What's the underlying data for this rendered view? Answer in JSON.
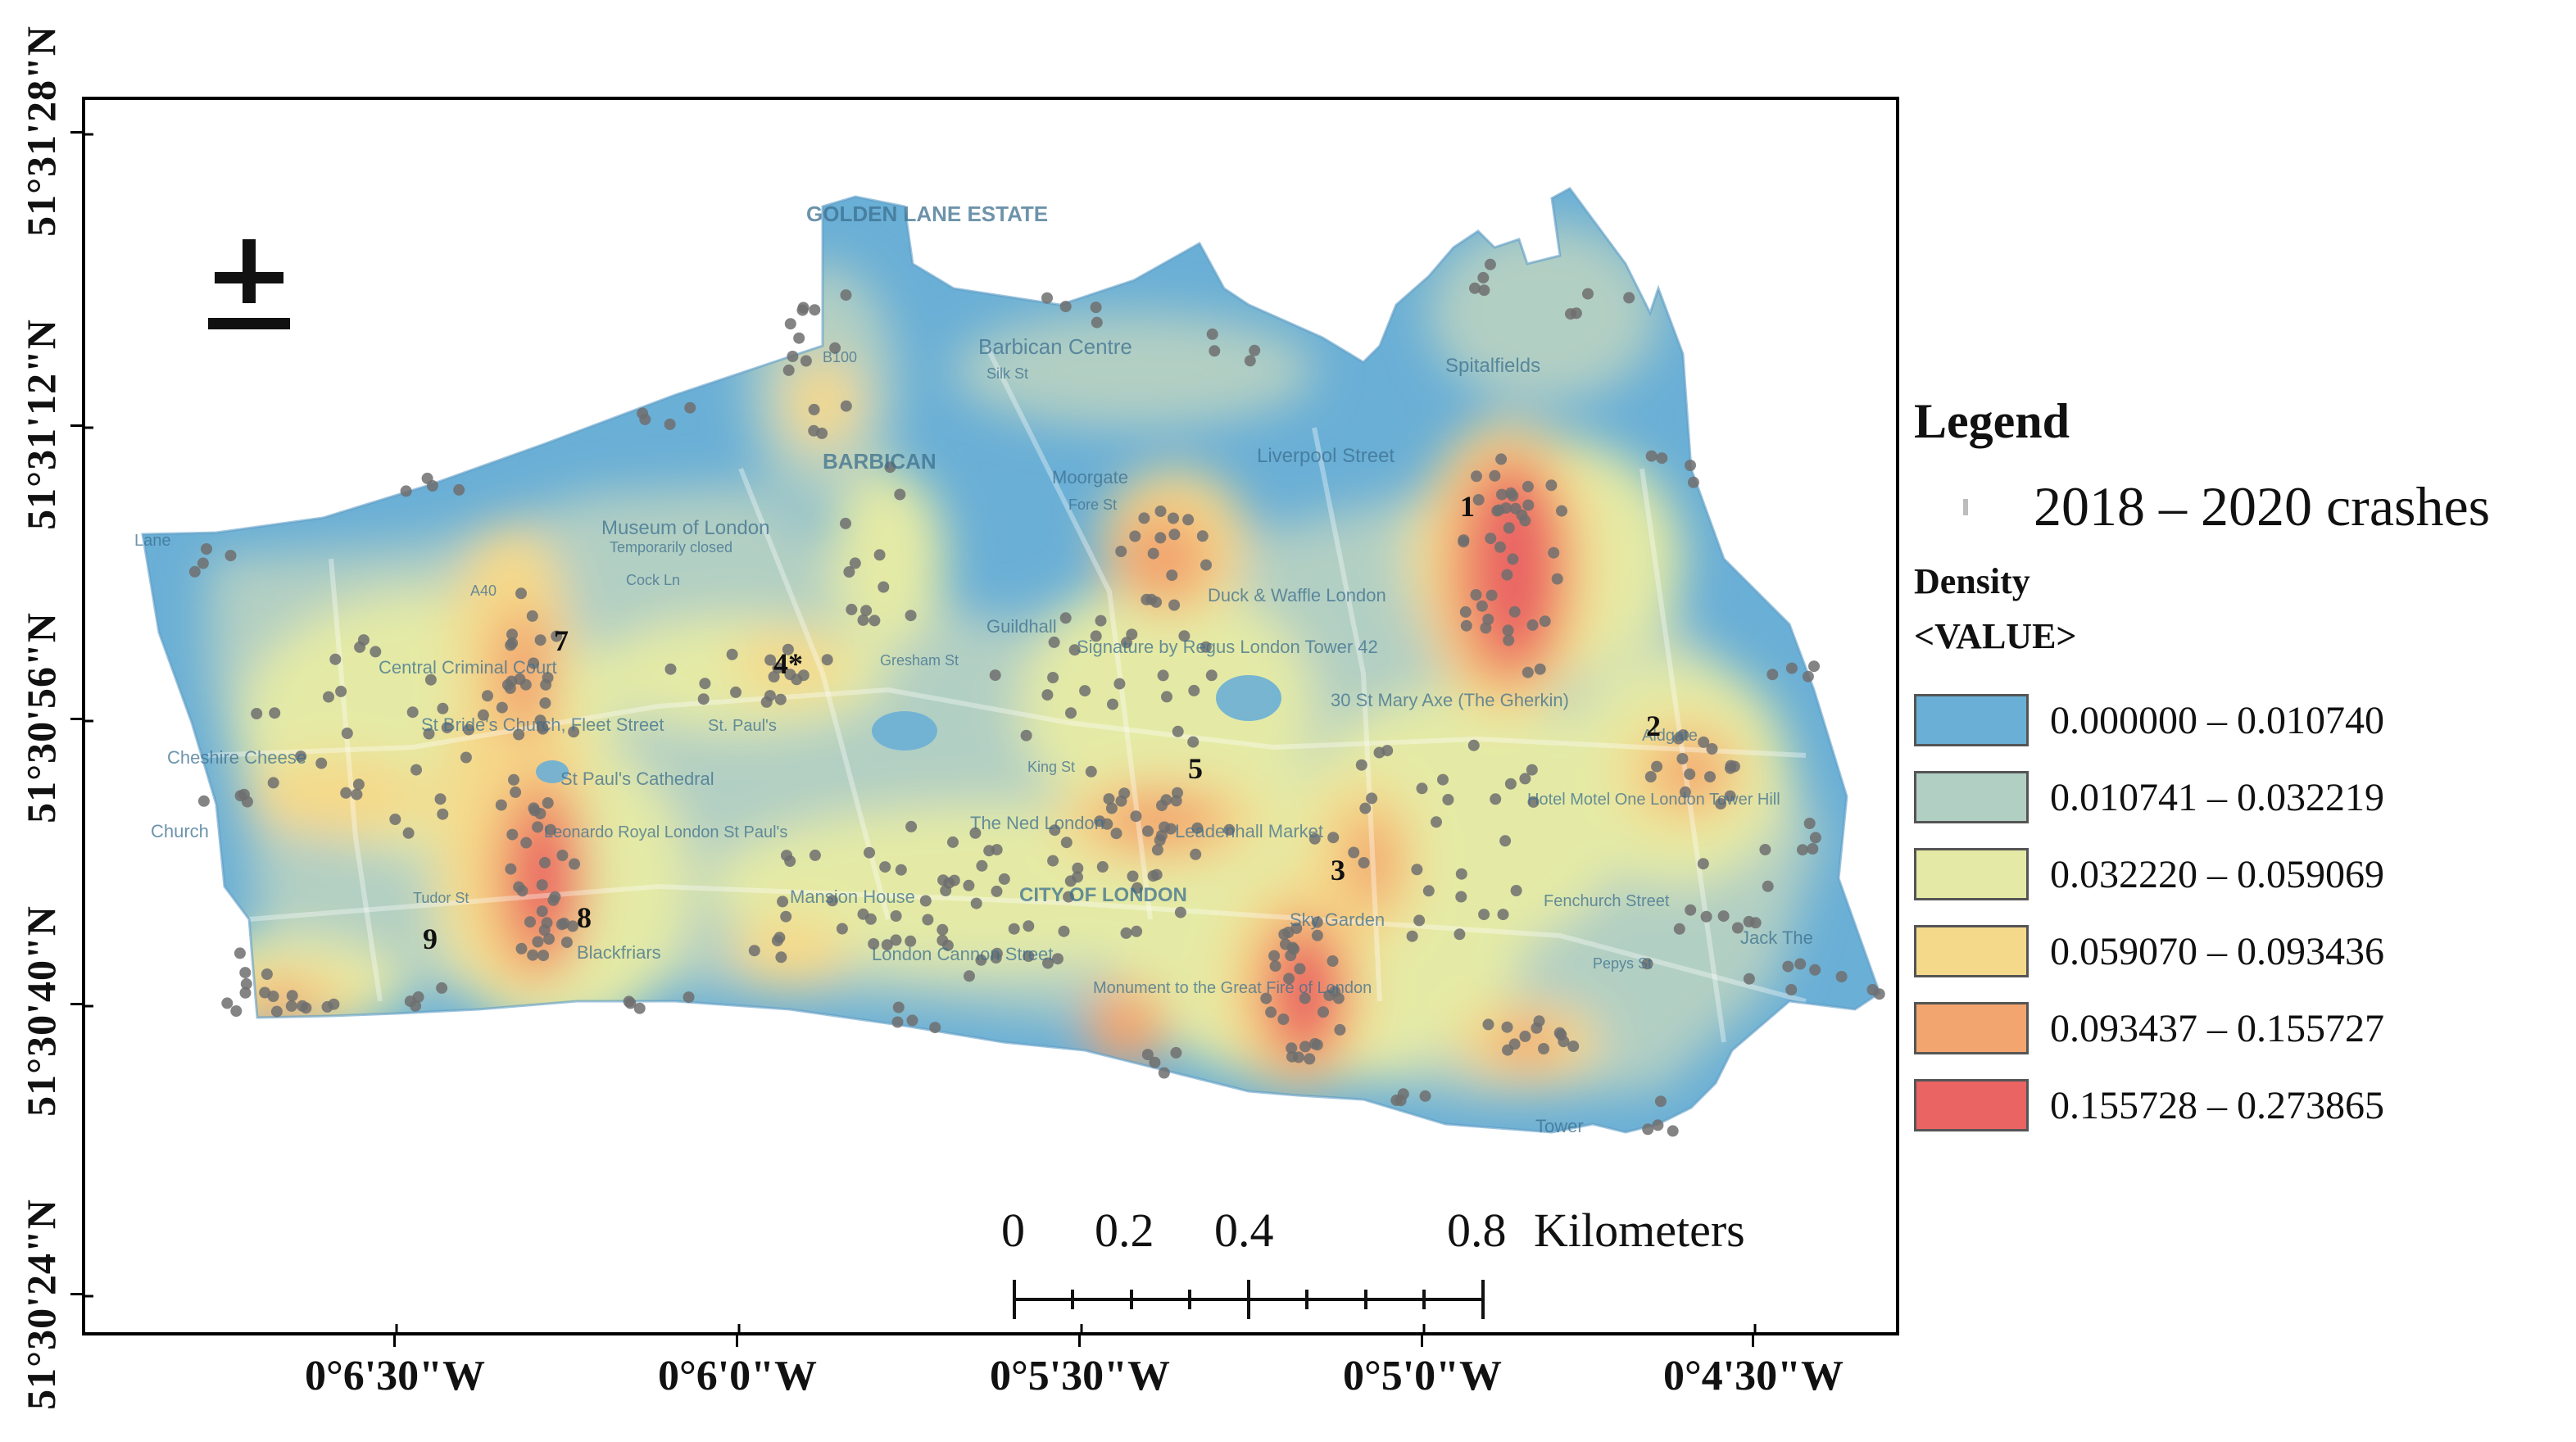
{
  "latitude_labels": [
    "51°31'28\"N",
    "51°31'12\"N",
    "51°30'56\"N",
    "51°30'40\"N",
    "51°30'24\"N"
  ],
  "longitude_labels": [
    "0°6'30\"W",
    "0°6'0\"W",
    "0°5'30\"W",
    "0°5'0\"W",
    "0°4'30\"W"
  ],
  "legend": {
    "title": "Legend",
    "points_label": "2018 – 2020 crashes",
    "density_title": "Density",
    "value_title": "<VALUE>",
    "classes": [
      {
        "range": "0.000000 – 0.010740",
        "color": "#6aafd6"
      },
      {
        "range": "0.010741 – 0.032219",
        "color": "#b2cfc3"
      },
      {
        "range": "0.032220 – 0.059069",
        "color": "#e4eaa6"
      },
      {
        "range": "0.059070 – 0.093436",
        "color": "#f5d98a"
      },
      {
        "range": "0.093437 – 0.155727",
        "color": "#f2a56f"
      },
      {
        "range": "0.155728 – 0.273865",
        "color": "#ea6464"
      }
    ]
  },
  "scale_bar": {
    "labels": [
      "0",
      "0.2",
      "0.4",
      "0.8"
    ],
    "unit": "Kilometers"
  },
  "hotspot_labels": [
    "1",
    "2",
    "3",
    "4*",
    "5",
    "7",
    "8",
    "9"
  ],
  "basemap_labels": [
    "GOLDEN LANE ESTATE",
    "Barbican Centre",
    "BARBICAN",
    "Museum of London",
    "Temporarily closed",
    "Moorgate",
    "Fore St",
    "Liverpool Street",
    "Spitalfields",
    "Duck & Waffle London",
    "Signature by Regus London Tower 42",
    "30 St Mary Axe (The Gherkin)",
    "Guildhall",
    "Central Criminal Court",
    "St Bride's Church, Fleet Street",
    "Cheshire Cheese",
    "St Paul's Cathedral",
    "St. Paul's",
    "Leonardo Royal London St Paul's",
    "Blackfriars",
    "Mansion House",
    "CITY OF LONDON",
    "The Ned London",
    "Leadenhall Market",
    "London Cannon Street",
    "Monument to the Great Fire of London",
    "Sky Garden",
    "Hotel Motel One London Tower Hill",
    "Aldgate",
    "Fenchurch Street",
    "Jack The",
    "Tower",
    "Cock Ln",
    "Gresham St",
    "King St",
    "Pepys St",
    "Tudor St",
    "B100",
    "A40",
    "Silk St",
    "Lane",
    "Church"
  ]
}
